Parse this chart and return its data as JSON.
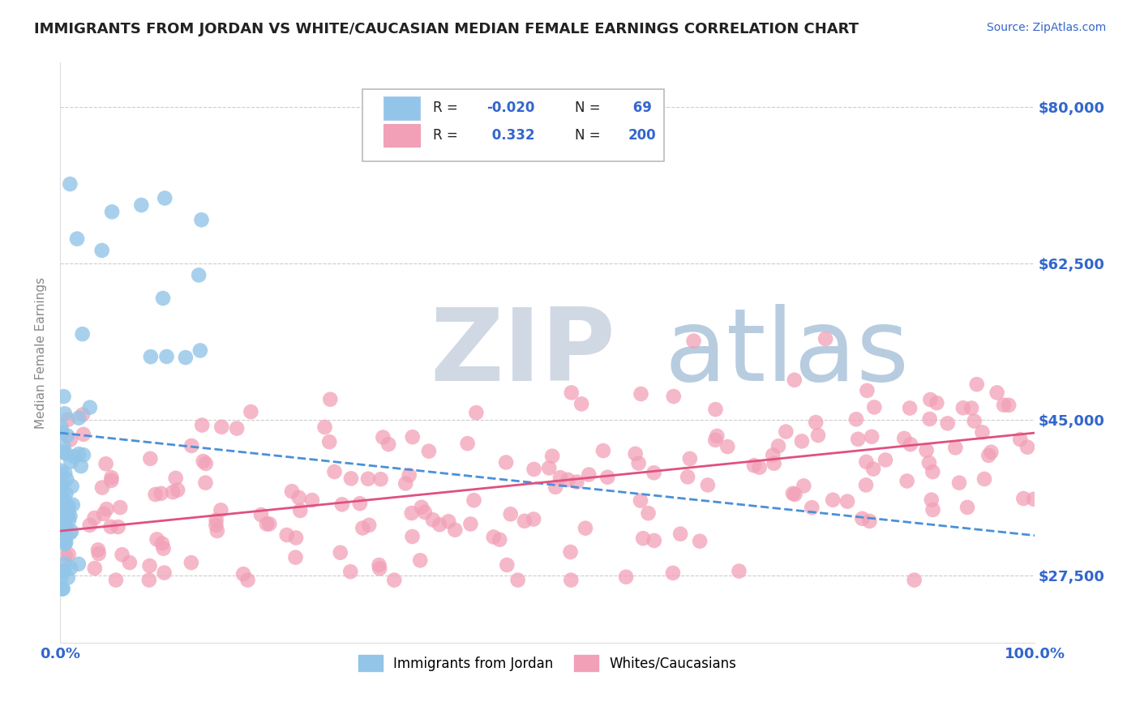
{
  "title": "IMMIGRANTS FROM JORDAN VS WHITE/CAUCASIAN MEDIAN FEMALE EARNINGS CORRELATION CHART",
  "source": "Source: ZipAtlas.com",
  "ylabel": "Median Female Earnings",
  "x_min": 0.0,
  "x_max": 1.0,
  "y_min": 20000,
  "y_max": 85000,
  "yticks": [
    27500,
    45000,
    62500,
    80000
  ],
  "ytick_labels": [
    "$27,500",
    "$45,000",
    "$62,500",
    "$80,000"
  ],
  "blue_color": "#92C5E8",
  "pink_color": "#F2A0B8",
  "trend_blue_color": "#4A90D9",
  "trend_pink_color": "#E05080",
  "watermark_ZIP": "ZIP",
  "watermark_atlas": "atlas",
  "watermark_color_ZIP": "#D0D8E4",
  "watermark_color_atlas": "#B8CCE0",
  "background_color": "#FFFFFF",
  "grid_color": "#CCCCCC",
  "title_color": "#222222",
  "axis_label_color": "#888888",
  "tick_color": "#3366CC",
  "blue_trend_x0": 0.0,
  "blue_trend_y0": 43500,
  "blue_trend_x1": 1.0,
  "blue_trend_y1": 32000,
  "pink_trend_x0": 0.0,
  "pink_trend_y0": 32500,
  "pink_trend_x1": 1.0,
  "pink_trend_y1": 43500
}
